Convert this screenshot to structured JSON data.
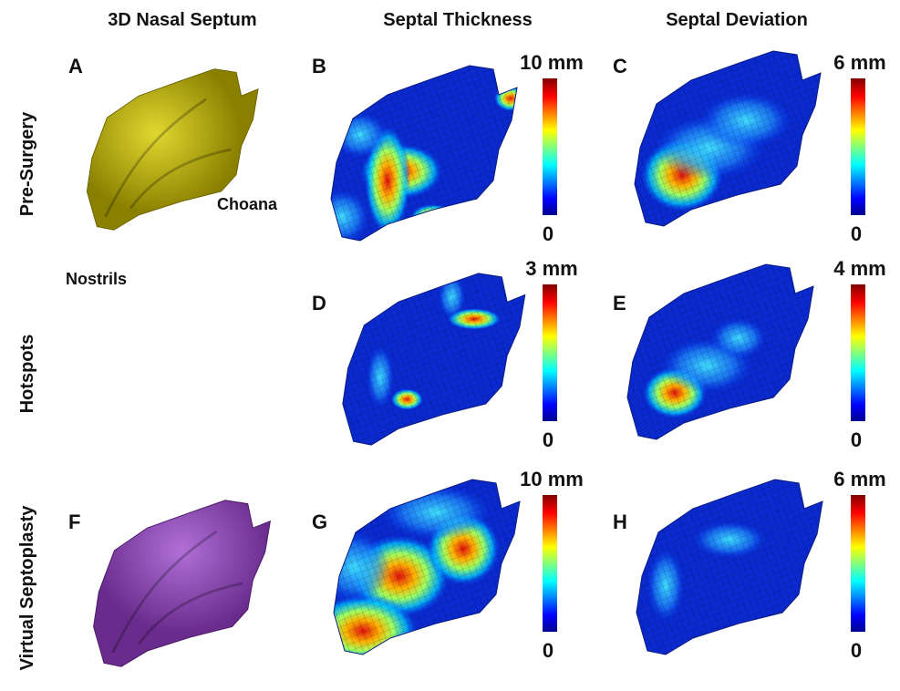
{
  "columns": [
    "3D Nasal Septum",
    "Septal Thickness",
    "Septal Deviation"
  ],
  "rows": [
    "Pre-Surgery",
    "Hotspots",
    "Virtual Septoplasty"
  ],
  "annotations": [
    "Choana",
    "Nostrils"
  ],
  "panels": [
    {
      "letter": "A"
    },
    {
      "letter": "B",
      "scale_max": "10 mm",
      "scale_min": "0"
    },
    {
      "letter": "C",
      "scale_max": "6 mm",
      "scale_min": "0"
    },
    {
      "letter": "D",
      "scale_max": "3 mm",
      "scale_min": "0"
    },
    {
      "letter": "E",
      "scale_max": "4 mm",
      "scale_min": "0"
    },
    {
      "letter": "F"
    },
    {
      "letter": "G",
      "scale_max": "10 mm",
      "scale_min": "0"
    },
    {
      "letter": "H",
      "scale_max": "6 mm",
      "scale_min": "0"
    }
  ]
}
